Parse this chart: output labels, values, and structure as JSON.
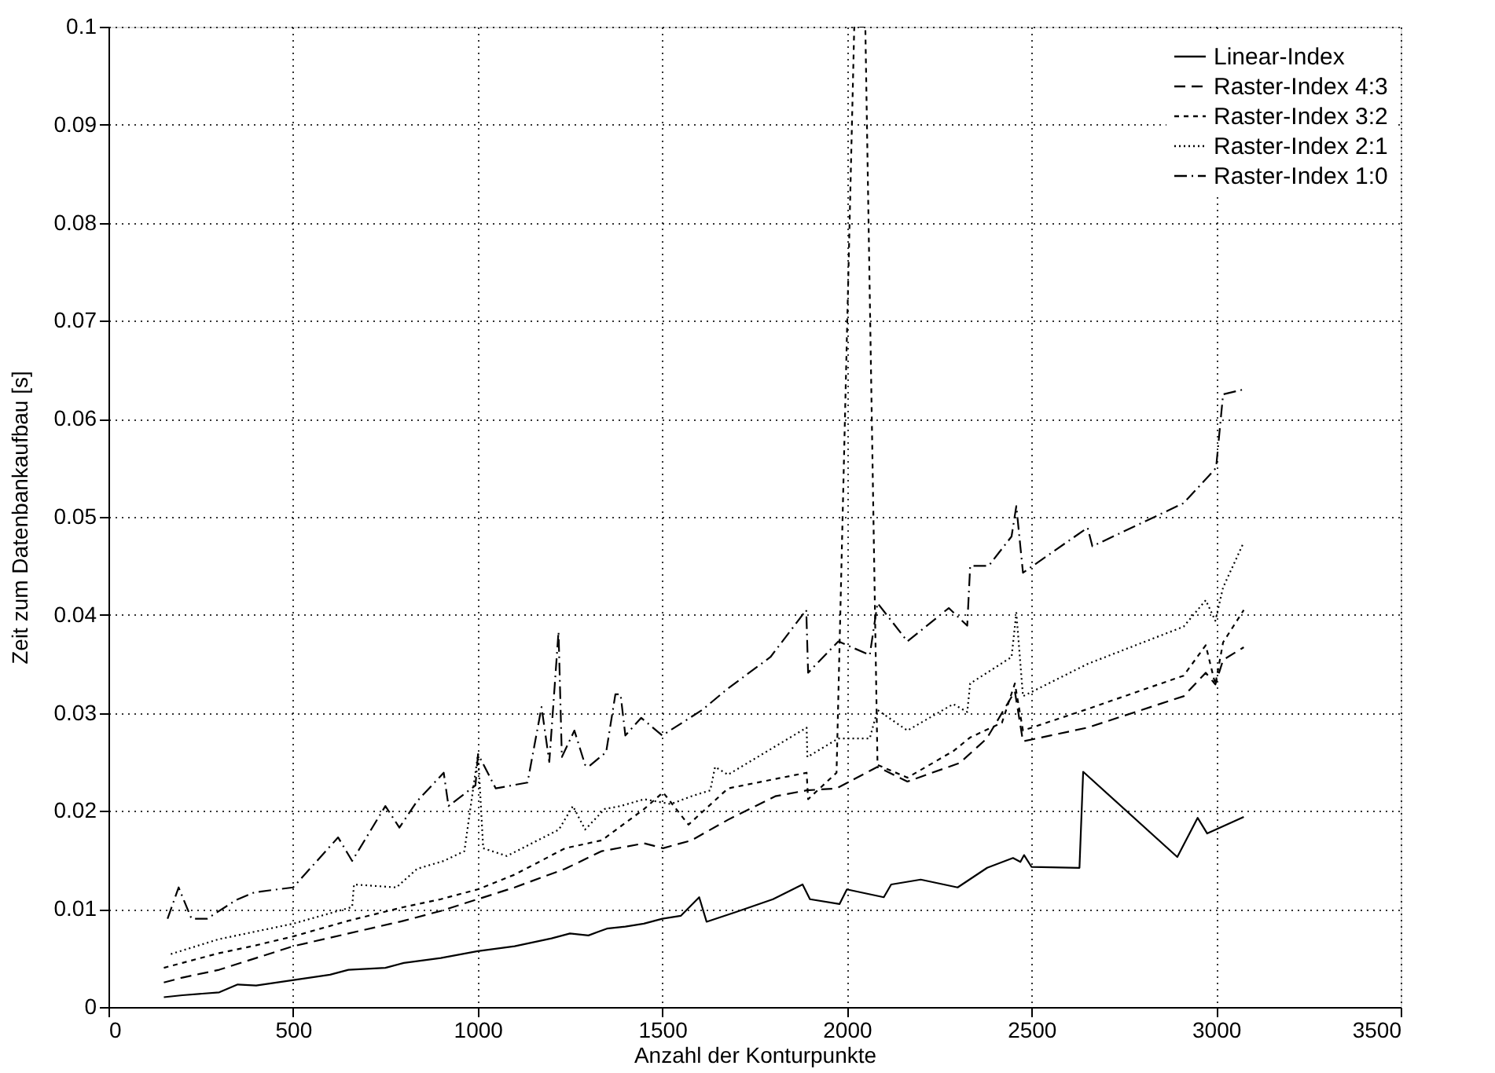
{
  "chart_data": {
    "type": "line",
    "xlabel": "Anzahl der Konturpunkte",
    "ylabel": "Zeit zum Datenbankaufbau [s]",
    "xlim": [
      0,
      3500
    ],
    "xticks": [
      0,
      500,
      1000,
      1500,
      2000,
      2500,
      3000,
      3500
    ],
    "ylim": [
      0,
      0.1
    ],
    "yticks": [
      0,
      0.01,
      0.02,
      0.03,
      0.04,
      0.05,
      0.06,
      0.07,
      0.08,
      0.09,
      0.1
    ],
    "grid": true,
    "legend": "top right",
    "marker": "none",
    "series": [
      {
        "name": "Linear-Index",
        "color": "#000000",
        "line_style": "solid",
        "x": [
          150,
          200,
          300,
          350,
          400,
          600,
          650,
          750,
          800,
          900,
          1000,
          1100,
          1200,
          1250,
          1300,
          1350,
          1400,
          1450,
          1500,
          1550,
          1600,
          1620,
          1700,
          1800,
          1880,
          1900,
          1980,
          2000,
          2100,
          2120,
          2200,
          2300,
          2380,
          2450,
          2470,
          2480,
          2500,
          2630,
          2640,
          2895,
          2950,
          2976,
          3075
        ],
        "values": [
          0.001,
          0.0012,
          0.0015,
          0.0023,
          0.0022,
          0.0033,
          0.0038,
          0.004,
          0.0045,
          0.005,
          0.0057,
          0.0062,
          0.007,
          0.0075,
          0.0073,
          0.008,
          0.0082,
          0.0085,
          0.009,
          0.0093,
          0.0112,
          0.0087,
          0.0097,
          0.011,
          0.0125,
          0.011,
          0.0105,
          0.012,
          0.0112,
          0.0125,
          0.013,
          0.0122,
          0.0142,
          0.0152,
          0.0148,
          0.0155,
          0.0143,
          0.0142,
          0.024,
          0.0153,
          0.0193,
          0.0177,
          0.0194
        ]
      },
      {
        "name": "Raster-Index 4:3",
        "color": "#000000",
        "line_style": "dashed",
        "x": [
          150,
          200,
          300,
          400,
          500,
          650,
          800,
          900,
          1000,
          1100,
          1237,
          1336,
          1451,
          1502,
          1579,
          1678,
          1806,
          1891,
          1972,
          2083,
          2164,
          2306,
          2379,
          2455,
          2477,
          2652,
          2912,
          2972,
          2998,
          3019,
          3075
        ],
        "values": [
          0.0025,
          0.003,
          0.0038,
          0.005,
          0.0062,
          0.0075,
          0.0088,
          0.0098,
          0.011,
          0.0122,
          0.0141,
          0.0159,
          0.0167,
          0.0162,
          0.017,
          0.0191,
          0.0215,
          0.0221,
          0.0223,
          0.0245,
          0.023,
          0.0249,
          0.0274,
          0.0322,
          0.0271,
          0.0285,
          0.0317,
          0.0341,
          0.0329,
          0.0354,
          0.0367
        ]
      },
      {
        "name": "Raster-Index 3:2",
        "color": "#000000",
        "line_style": "short_dashed",
        "x": [
          150,
          200,
          300,
          400,
          500,
          650,
          800,
          900,
          1000,
          1100,
          1237,
          1336,
          1451,
          1502,
          1571,
          1678,
          1891,
          1895,
          1972,
          2020,
          2050,
          2083,
          2164,
          2288,
          2334,
          2420,
          2455,
          2477,
          2652,
          2912,
          2972,
          2998,
          3019,
          3075
        ],
        "values": [
          0.004,
          0.0045,
          0.0055,
          0.0063,
          0.0072,
          0.0088,
          0.0102,
          0.011,
          0.012,
          0.0135,
          0.0162,
          0.017,
          0.0202,
          0.0219,
          0.0186,
          0.0223,
          0.0239,
          0.0212,
          0.0239,
          0.1,
          0.1,
          0.0247,
          0.0234,
          0.0261,
          0.0275,
          0.029,
          0.033,
          0.0282,
          0.0304,
          0.0338,
          0.0369,
          0.0329,
          0.0372,
          0.0405
        ]
      },
      {
        "name": "Raster-Index 2:1",
        "color": "#000000",
        "line_style": "dotted",
        "x": [
          169,
          297,
          500,
          660,
          665,
          780,
          836,
          908,
          964,
          1001,
          1015,
          1079,
          1220,
          1258,
          1291,
          1344,
          1387,
          1451,
          1523,
          1579,
          1630,
          1643,
          1678,
          1891,
          1893,
          1977,
          2062,
          2083,
          2164,
          2288,
          2326,
          2334,
          2446,
          2459,
          2477,
          2652,
          2912,
          2972,
          2998,
          3019,
          3075
        ],
        "values": [
          0.0054,
          0.0069,
          0.0085,
          0.0102,
          0.0125,
          0.0122,
          0.0141,
          0.0149,
          0.0159,
          0.0258,
          0.0162,
          0.0154,
          0.0181,
          0.0205,
          0.0181,
          0.0202,
          0.0205,
          0.0212,
          0.0207,
          0.0215,
          0.0221,
          0.0245,
          0.0237,
          0.0285,
          0.0255,
          0.0274,
          0.0274,
          0.0303,
          0.0282,
          0.0309,
          0.0301,
          0.033,
          0.0357,
          0.0402,
          0.0317,
          0.035,
          0.0388,
          0.0415,
          0.0394,
          0.0428,
          0.0474
        ]
      },
      {
        "name": "Raster-Index 1:0",
        "color": "#000000",
        "line_style": "dashdot",
        "x": [
          160,
          190,
          225,
          267,
          345,
          395,
          500,
          622,
          660,
          750,
          788,
          836,
          908,
          921,
          994,
          1001,
          1049,
          1135,
          1173,
          1194,
          1219,
          1228,
          1262,
          1291,
          1300,
          1348,
          1373,
          1387,
          1400,
          1443,
          1500,
          1608,
          1678,
          1793,
          1890,
          1895,
          1977,
          2062,
          2083,
          2164,
          2276,
          2326,
          2334,
          2384,
          2446,
          2459,
          2477,
          2652,
          2665,
          2912,
          2981,
          3000,
          3019,
          3075
        ],
        "values": [
          0.009,
          0.0122,
          0.009,
          0.009,
          0.0109,
          0.0117,
          0.0122,
          0.0173,
          0.0149,
          0.0205,
          0.0183,
          0.021,
          0.0239,
          0.0205,
          0.0226,
          0.0258,
          0.0223,
          0.0229,
          0.0306,
          0.025,
          0.0383,
          0.0255,
          0.0282,
          0.0247,
          0.0245,
          0.026,
          0.0319,
          0.0319,
          0.0277,
          0.0295,
          0.0277,
          0.0303,
          0.0325,
          0.0357,
          0.0405,
          0.0341,
          0.0373,
          0.0359,
          0.0412,
          0.0373,
          0.0407,
          0.0389,
          0.045,
          0.045,
          0.048,
          0.0511,
          0.0443,
          0.0489,
          0.047,
          0.0514,
          0.0542,
          0.055,
          0.0625,
          0.063
        ]
      }
    ]
  }
}
